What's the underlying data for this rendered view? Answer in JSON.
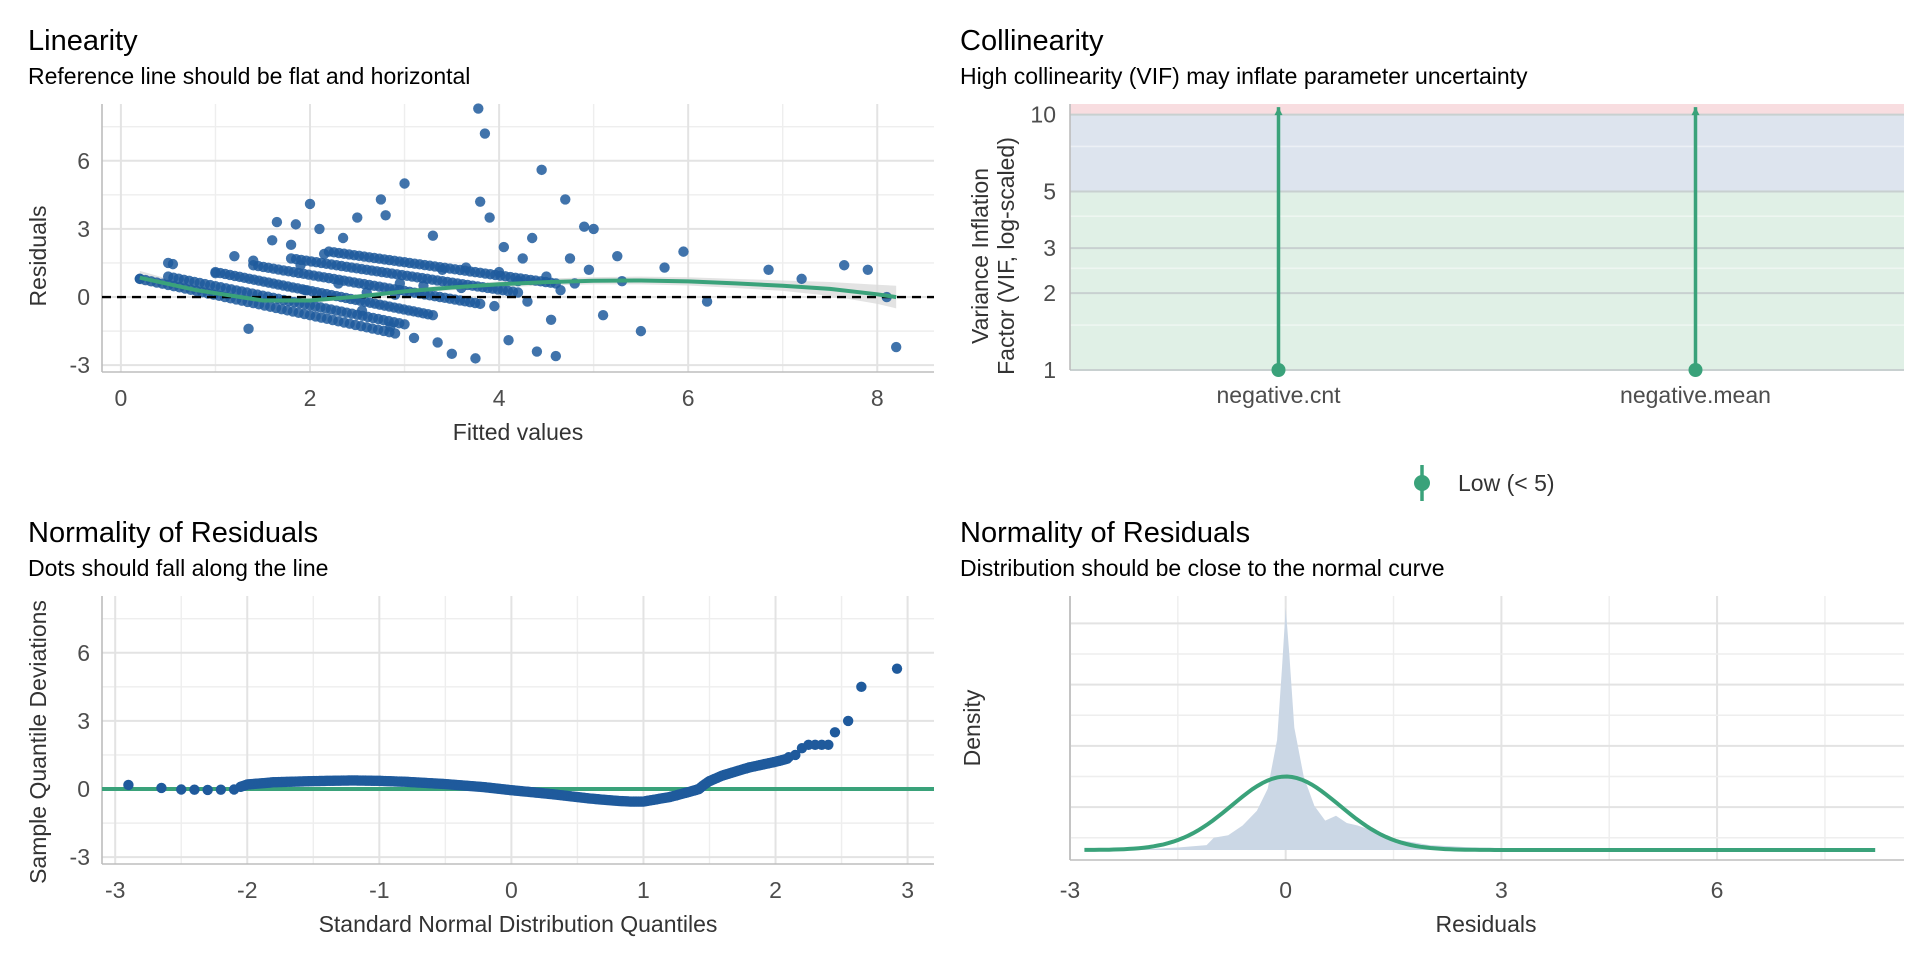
{
  "panels": {
    "linearity": {
      "title": "Linearity",
      "subtitle": "Reference line should be flat and horizontal",
      "xlabel": "Fitted values",
      "ylabel": "Residuals"
    },
    "collinearity": {
      "title": "Collinearity",
      "subtitle": "High collinearity (VIF) may inflate parameter uncertainty",
      "ylabel_line1": "Variance Inflation",
      "ylabel_line2": "Factor (VIF, log-scaled)",
      "legend_label": "Low (< 5)"
    },
    "qq": {
      "title": "Normality of Residuals",
      "subtitle": "Dots should fall along the line",
      "xlabel": "Standard Normal Distribution Quantiles",
      "ylabel": "Sample Quantile Deviations"
    },
    "density": {
      "title": "Normality of Residuals",
      "subtitle": "Distribution should be close to the normal curve",
      "xlabel": "Residuals",
      "ylabel": "Density"
    }
  },
  "colors": {
    "points": "#1f5a9c",
    "fit_line": "#3aa27a",
    "band": "#d9d9d9",
    "zone_low": "#e0f0e6",
    "zone_moderate": "#dde4ee",
    "zone_high": "#f8dde0",
    "density_fill": "#cbd7e5"
  },
  "chart_data": [
    {
      "type": "scatter",
      "panel": "Linearity",
      "xlim": [
        -0.2,
        8.6
      ],
      "ylim": [
        -3.3,
        8.5
      ],
      "xticks": [
        0,
        2,
        4,
        6,
        8
      ],
      "yticks": [
        -3,
        0,
        3,
        6
      ],
      "reference_line_y": 0,
      "points_x": [
        0.2,
        0.5,
        0.55,
        1.0,
        1.2,
        1.35,
        1.4,
        1.6,
        1.65,
        1.8,
        1.85,
        1.9,
        1.95,
        2.0,
        2.1,
        2.15,
        2.3,
        2.35,
        2.5,
        2.55,
        2.6,
        2.75,
        2.8,
        2.85,
        2.9,
        2.95,
        3.0,
        3.1,
        3.2,
        3.3,
        3.35,
        3.4,
        3.5,
        3.6,
        3.65,
        3.75,
        3.78,
        3.8,
        3.85,
        3.9,
        3.95,
        4.0,
        4.05,
        4.1,
        4.2,
        4.25,
        4.3,
        4.35,
        4.4,
        4.45,
        4.5,
        4.55,
        4.6,
        4.65,
        4.7,
        4.75,
        4.8,
        4.9,
        4.95,
        5.0,
        5.1,
        5.25,
        5.3,
        5.5,
        5.75,
        5.95,
        6.2,
        6.85,
        7.2,
        7.65,
        7.9,
        8.1,
        8.2
      ],
      "points_y": [
        0.8,
        1.5,
        1.45,
        1.05,
        1.8,
        -1.4,
        1.6,
        2.5,
        3.3,
        2.3,
        3.2,
        1.4,
        0.3,
        4.1,
        3.0,
        1.9,
        0.6,
        2.6,
        3.5,
        -0.6,
        0.2,
        4.3,
        3.6,
        -1.3,
        0.1,
        0.6,
        5.0,
        -1.8,
        0.5,
        2.7,
        -2.0,
        1.2,
        -2.5,
        0.4,
        1.3,
        -2.7,
        8.3,
        4.2,
        7.2,
        3.5,
        -0.4,
        1.1,
        2.2,
        -1.9,
        0.7,
        1.7,
        -0.2,
        2.6,
        -2.4,
        5.6,
        0.9,
        -1.0,
        -2.6,
        0.3,
        4.3,
        1.7,
        0.6,
        3.1,
        1.2,
        3.0,
        -0.8,
        1.8,
        0.7,
        -1.5,
        1.3,
        2.0,
        -0.2,
        1.2,
        0.8,
        1.4,
        1.2,
        0.0,
        -2.2
      ],
      "cloud_lines": [
        {
          "x": [
            0.2,
            2.9
          ],
          "y": [
            0.8,
            -1.6
          ]
        },
        {
          "x": [
            0.5,
            3.0
          ],
          "y": [
            0.9,
            -1.2
          ]
        },
        {
          "x": [
            1.0,
            3.3
          ],
          "y": [
            1.1,
            -0.8
          ]
        },
        {
          "x": [
            1.4,
            3.8
          ],
          "y": [
            1.4,
            -0.3
          ]
        },
        {
          "x": [
            1.8,
            4.2
          ],
          "y": [
            1.7,
            0.2
          ]
        },
        {
          "x": [
            2.2,
            4.6
          ],
          "y": [
            2.0,
            0.6
          ]
        }
      ],
      "smooth_x": [
        0.2,
        0.8,
        1.5,
        2.0,
        2.5,
        3.0,
        3.5,
        4.0,
        4.5,
        5.0,
        5.5,
        6.0,
        6.5,
        7.0,
        7.5,
        8.0,
        8.2
      ],
      "smooth_y": [
        0.85,
        0.3,
        -0.15,
        -0.15,
        0.02,
        0.25,
        0.42,
        0.56,
        0.66,
        0.72,
        0.73,
        0.69,
        0.6,
        0.5,
        0.36,
        0.12,
        0.0
      ],
      "band_half_width": [
        0.3,
        0.15,
        0.1,
        0.1,
        0.1,
        0.1,
        0.12,
        0.13,
        0.15,
        0.16,
        0.17,
        0.18,
        0.2,
        0.23,
        0.3,
        0.42,
        0.5
      ]
    },
    {
      "type": "bar",
      "panel": "Collinearity",
      "log_scale": true,
      "categories": [
        "negative.cnt",
        "negative.mean"
      ],
      "values": [
        1.0,
        1.0
      ],
      "upper_whisker": [
        10.7,
        10.7
      ],
      "yticks": [
        1,
        2,
        3,
        5,
        10
      ],
      "zones": [
        {
          "name": "low",
          "from": 1,
          "to": 5
        },
        {
          "name": "moderate",
          "from": 5,
          "to": 10
        },
        {
          "name": "high",
          "from": 10,
          "to": 11
        }
      ],
      "legend": "bottom"
    },
    {
      "type": "scatter",
      "panel": "Normality of Residuals (QQ)",
      "xlim": [
        -3.1,
        3.2
      ],
      "ylim": [
        -3.3,
        8.5
      ],
      "xticks": [
        -3,
        -2,
        -1,
        0,
        1,
        2,
        3
      ],
      "yticks": [
        -3,
        0,
        3,
        6
      ],
      "reference_line_y": 0,
      "sparse_points_x": [
        -2.9,
        -2.65,
        -2.5,
        -2.4,
        -2.3,
        -2.2,
        -2.1,
        -2.05,
        2.1,
        2.15,
        2.2,
        2.25,
        2.3,
        2.35,
        2.4,
        2.45,
        2.55,
        2.65,
        2.92
      ],
      "sparse_points_y": [
        0.18,
        0.05,
        -0.02,
        -0.03,
        -0.04,
        -0.03,
        -0.02,
        0.1,
        1.4,
        1.5,
        1.8,
        1.95,
        1.95,
        1.95,
        1.95,
        2.5,
        3.0,
        4.5,
        5.3
      ],
      "dense_curve_x": [
        -2.05,
        -2.0,
        -1.8,
        -1.5,
        -1.2,
        -1.0,
        -0.8,
        -0.5,
        -0.2,
        0.0,
        0.3,
        0.6,
        0.8,
        0.9,
        1.0,
        1.2,
        1.35,
        1.42,
        1.45,
        1.5,
        1.6,
        1.8,
        2.0,
        2.1
      ],
      "dense_curve_y": [
        0.1,
        0.2,
        0.3,
        0.35,
        0.38,
        0.36,
        0.32,
        0.22,
        0.08,
        -0.05,
        -0.22,
        -0.42,
        -0.52,
        -0.55,
        -0.55,
        -0.35,
        -0.12,
        0.0,
        0.15,
        0.35,
        0.6,
        0.95,
        1.2,
        1.35
      ]
    },
    {
      "type": "area",
      "panel": "Normality of Residuals (Density)",
      "xlim": [
        -3.0,
        8.6
      ],
      "xticks": [
        -3,
        0,
        3,
        6
      ],
      "density_x": [
        -2.2,
        -1.5,
        -1.1,
        -1.0,
        -0.8,
        -0.6,
        -0.4,
        -0.25,
        -0.12,
        -0.05,
        0.0,
        0.05,
        0.12,
        0.25,
        0.4,
        0.55,
        0.7,
        0.85,
        1.0,
        1.2,
        1.4,
        1.6,
        1.8,
        2.0,
        2.3,
        2.6,
        3.0,
        8.2
      ],
      "density_y": [
        0.0,
        0.01,
        0.02,
        0.05,
        0.06,
        0.1,
        0.16,
        0.25,
        0.45,
        0.75,
        0.99,
        0.8,
        0.5,
        0.3,
        0.18,
        0.12,
        0.14,
        0.11,
        0.1,
        0.08,
        0.05,
        0.04,
        0.03,
        0.02,
        0.015,
        0.01,
        0.008,
        0.0
      ],
      "normal_mean": 0,
      "normal_sd": 0.75,
      "normal_peak_relative": 0.3,
      "normal_x_range": [
        -2.8,
        8.2
      ]
    }
  ]
}
